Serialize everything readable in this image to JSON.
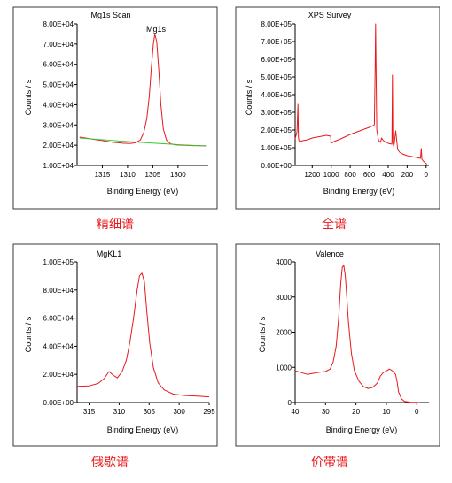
{
  "colors": {
    "line": "#e8191c",
    "baseline": "#2ecc2e",
    "caption": "#e8191c",
    "axis": "#000000",
    "frame": "#3a3a3a"
  },
  "chart_data": [
    {
      "type": "line",
      "title": "Mg1s Scan",
      "xlabel": "Binding Energy (eV)",
      "ylabel": "Counts / s",
      "caption": "精细谱",
      "annotation": "Mg1s",
      "x_reversed": true,
      "xlim": [
        1320,
        1294
      ],
      "ylim": [
        10000,
        80000
      ],
      "xticks": [
        1315,
        1310,
        1305,
        1300
      ],
      "xtick_labels": [
        "1315",
        "1310",
        "1305",
        "1300"
      ],
      "yticks": [
        10000,
        20000,
        30000,
        40000,
        50000,
        60000,
        70000,
        80000
      ],
      "ytick_labels": [
        "1.00E+04",
        "2.00E+04",
        "3.00E+04",
        "4.00E+04",
        "5.00E+04",
        "6.00E+04",
        "7.00E+04",
        "8.00E+04"
      ],
      "series": [
        {
          "x": [
            1319.5,
            1317,
            1315,
            1313,
            1311,
            1309.5,
            1308.5,
            1307.5,
            1306.8,
            1306.2,
            1305.7,
            1305.3,
            1304.9,
            1304.6,
            1304.2,
            1303.8,
            1303.4,
            1302.9,
            1302.3,
            1301.5,
            1300.5,
            1299,
            1297,
            1295,
            1294.5
          ],
          "y": [
            24000,
            23000,
            22300,
            21500,
            21000,
            20800,
            21200,
            22500,
            26000,
            33000,
            44000,
            58000,
            70000,
            75000,
            71000,
            57000,
            40000,
            28000,
            22500,
            20700,
            20200,
            20000,
            19800,
            19700,
            19700
          ]
        },
        {
          "x": [
            1319.5,
            1310,
            1300,
            1294.5
          ],
          "y": [
            23500,
            21800,
            20300,
            19600
          ]
        }
      ]
    },
    {
      "type": "line",
      "title": "XPS Survey",
      "xlabel": "Binding Energy (eV)",
      "ylabel": "Counts / s",
      "caption": "全谱",
      "x_reversed": true,
      "xlim": [
        1380,
        -30
      ],
      "ylim": [
        0,
        800000
      ],
      "xticks": [
        1200,
        1000,
        800,
        600,
        400,
        200,
        0
      ],
      "xtick_labels": [
        "1200",
        "1000",
        "800",
        "600",
        "400",
        "200",
        "0"
      ],
      "yticks": [
        0,
        100000,
        200000,
        300000,
        400000,
        500000,
        600000,
        700000,
        800000
      ],
      "ytick_labels": [
        "0.00E+00",
        "1.00E+05",
        "2.00E+05",
        "3.00E+05",
        "4.00E+05",
        "5.00E+05",
        "6.00E+05",
        "7.00E+05",
        "8.00E+05"
      ],
      "series": [
        {
          "x": [
            1380,
            1360,
            1350,
            1345,
            1340,
            1330,
            1300,
            1250,
            1200,
            1150,
            1100,
            1050,
            1005,
            1002,
            1000,
            990,
            970,
            900,
            800,
            700,
            600,
            560,
            545,
            536,
            532,
            528,
            520,
            500,
            480,
            470,
            450,
            400,
            360,
            355,
            350,
            340,
            320,
            300,
            280,
            250,
            200,
            150,
            100,
            60,
            50,
            45,
            30,
            10,
            0,
            -10
          ],
          "y": [
            150000,
            190000,
            345000,
            160000,
            140000,
            135000,
            140000,
            145000,
            155000,
            160000,
            165000,
            170000,
            165000,
            120000,
            130000,
            128000,
            135000,
            150000,
            175000,
            195000,
            215000,
            225000,
            230000,
            600000,
            800000,
            600000,
            200000,
            140000,
            130000,
            155000,
            140000,
            125000,
            120000,
            510000,
            130000,
            105000,
            195000,
            90000,
            75000,
            65000,
            55000,
            50000,
            45000,
            40000,
            95000,
            35000,
            25000,
            15000,
            10000,
            8000
          ]
        }
      ]
    },
    {
      "type": "line",
      "title": "MgKL1",
      "xlabel": "Binding Energy (eV)",
      "ylabel": "Counts / s",
      "caption": "俄歇谱",
      "x_reversed": true,
      "xlim": [
        317,
        295
      ],
      "ylim": [
        0,
        100000
      ],
      "xticks": [
        315,
        310,
        305,
        300,
        295
      ],
      "xtick_labels": [
        "315",
        "310",
        "305",
        "300",
        "295"
      ],
      "yticks": [
        0,
        20000,
        40000,
        60000,
        80000,
        100000
      ],
      "ytick_labels": [
        "0.00E+00",
        "2.00E+04",
        "4.00E+04",
        "6.00E+04",
        "8.00E+04",
        "1.00E+05"
      ],
      "series": [
        {
          "x": [
            317,
            315,
            313.5,
            312.5,
            311.7,
            311,
            310.3,
            309.5,
            308.8,
            308.2,
            307.6,
            307,
            306.6,
            306.2,
            305.8,
            305.4,
            304.9,
            304.3,
            303.5,
            302.5,
            301,
            299,
            297,
            295
          ],
          "y": [
            11500,
            11800,
            13500,
            17000,
            22000,
            19500,
            17500,
            22000,
            30000,
            43000,
            60000,
            80000,
            90000,
            92000,
            86000,
            65000,
            42000,
            25000,
            14000,
            9000,
            6000,
            5000,
            4500,
            4000
          ]
        }
      ]
    },
    {
      "type": "line",
      "title": "Valence",
      "xlabel": "Binding Energy (eV)",
      "ylabel": "Counts / s",
      "caption": "价带谱",
      "x_reversed": true,
      "xlim": [
        40,
        -4
      ],
      "ylim": [
        0,
        4000
      ],
      "xticks": [
        40,
        30,
        20,
        10,
        0
      ],
      "xtick_labels": [
        "40",
        "30",
        "20",
        "10",
        "0"
      ],
      "yticks": [
        0,
        1000,
        2000,
        3000,
        4000
      ],
      "ytick_labels": [
        "0",
        "1000",
        "2000",
        "3000",
        "4000"
      ],
      "series": [
        {
          "x": [
            40,
            38,
            36,
            34,
            32,
            30,
            28.5,
            27.5,
            26.5,
            25.7,
            25,
            24.5,
            24,
            23.5,
            23,
            22.5,
            21.5,
            20.5,
            19,
            17.5,
            16,
            14.5,
            13,
            12,
            11,
            10,
            9,
            8,
            7,
            6.5,
            6,
            5,
            4,
            2,
            0,
            -1
          ],
          "y": [
            900,
            850,
            800,
            830,
            860,
            880,
            950,
            1150,
            1600,
            2400,
            3400,
            3850,
            3900,
            3600,
            3000,
            2300,
            1400,
            900,
            600,
            450,
            400,
            430,
            550,
            750,
            850,
            900,
            950,
            900,
            800,
            600,
            300,
            100,
            30,
            10,
            5,
            0
          ]
        }
      ]
    }
  ]
}
